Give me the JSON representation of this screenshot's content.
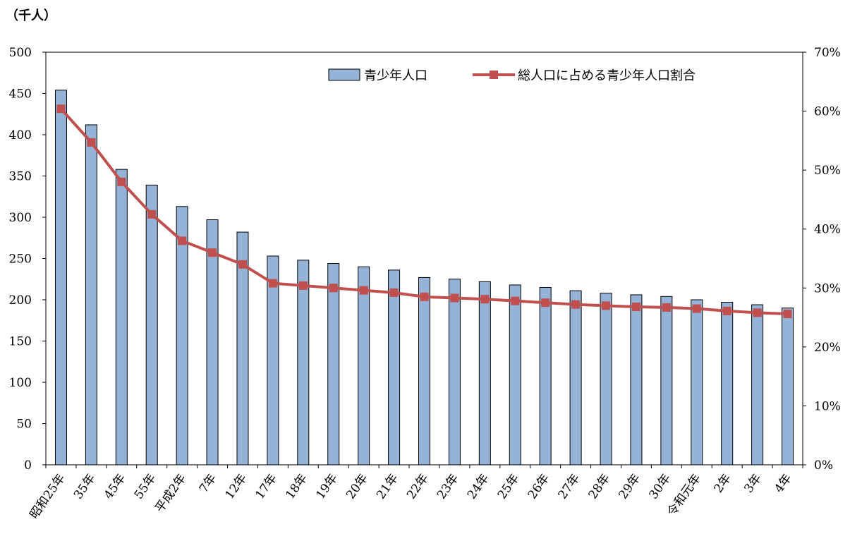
{
  "chart_data": {
    "type": "bar",
    "unit_label": "（千人）",
    "categories": [
      "昭和25年",
      "35年",
      "45年",
      "55年",
      "平成2年",
      "7年",
      "12年",
      "17年",
      "18年",
      "19年",
      "20年",
      "21年",
      "22年",
      "23年",
      "24年",
      "25年",
      "26年",
      "27年",
      "28年",
      "29年",
      "30年",
      "令和元年",
      "2年",
      "3年",
      "4年"
    ],
    "series": [
      {
        "name": "青少年人口",
        "type": "bar",
        "axis": "left",
        "color": "#95b3d7",
        "values": [
          454,
          412,
          358,
          339,
          313,
          297,
          282,
          253,
          248,
          244,
          240,
          236,
          227,
          225,
          222,
          218,
          215,
          211,
          208,
          206,
          204,
          200,
          197,
          194,
          190
        ]
      },
      {
        "name": "総人口に占める青少年人口割合",
        "type": "line",
        "axis": "right",
        "color": "#c0504d",
        "values": [
          60.4,
          54.7,
          48.0,
          42.5,
          38.0,
          36.0,
          34.0,
          30.8,
          30.4,
          30.0,
          29.6,
          29.2,
          28.5,
          28.3,
          28.1,
          27.8,
          27.5,
          27.2,
          27.0,
          26.8,
          26.7,
          26.5,
          26.1,
          25.8,
          25.6
        ]
      }
    ],
    "y_left": {
      "min": 0,
      "max": 500,
      "ticks": [
        "0",
        "50",
        "100",
        "150",
        "200",
        "250",
        "300",
        "350",
        "400",
        "450",
        "500"
      ]
    },
    "y_right": {
      "min": 0,
      "max": 70,
      "ticks": [
        "0%",
        "10%",
        "20%",
        "30%",
        "40%",
        "50%",
        "60%",
        "70%"
      ]
    },
    "legend": {
      "placement": "top-right"
    },
    "grid": false
  }
}
